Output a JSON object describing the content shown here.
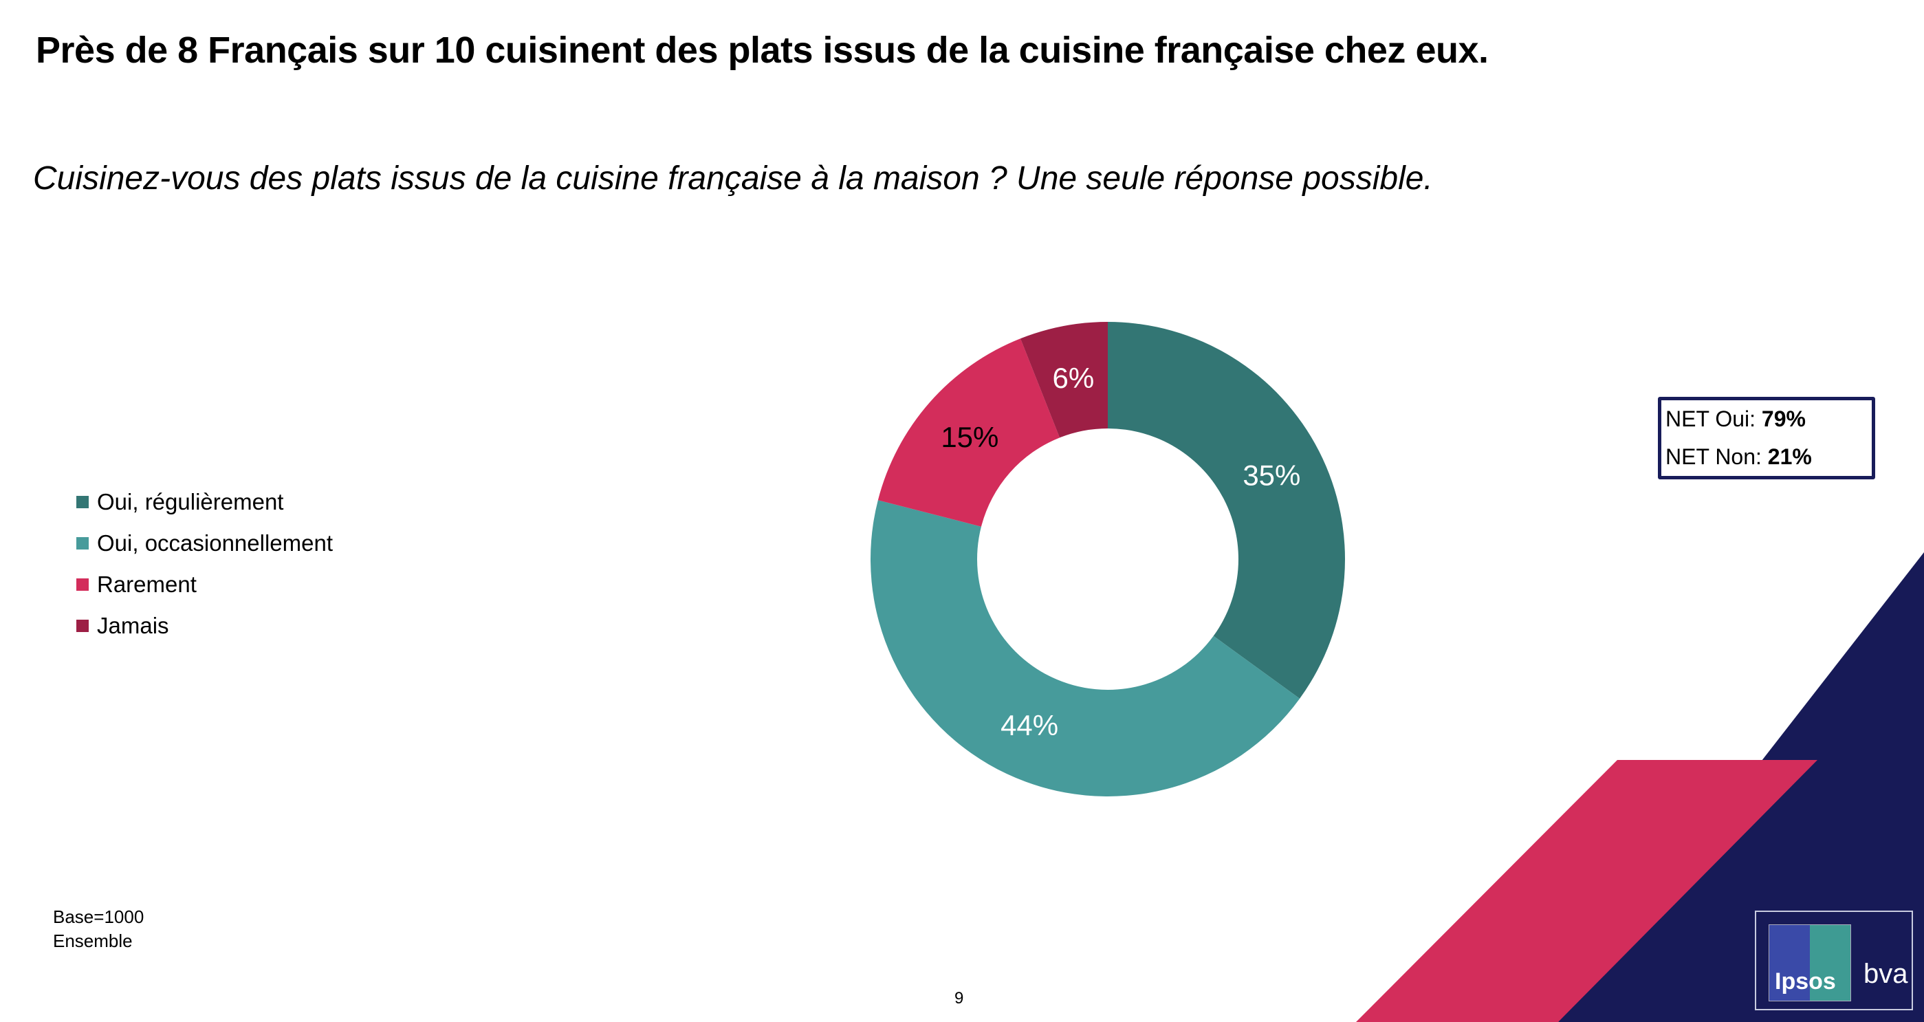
{
  "title": "Près de 8 Français sur 10 cuisinent des plats issus de la cuisine française chez eux.",
  "subtitle": "Cuisinez-vous des plats issus de la cuisine française à la maison ? Une seule réponse possible.",
  "chart_data": {
    "type": "pie",
    "donut": true,
    "categories": [
      "Oui, régulièrement",
      "Oui, occasionnellement",
      "Rarement",
      "Jamais"
    ],
    "values": [
      35,
      44,
      15,
      6
    ],
    "labels": [
      "35%",
      "44%",
      "15%",
      "6%"
    ],
    "colors": [
      "#337674",
      "#479b9b",
      "#d32d5b",
      "#9d1f45"
    ],
    "label_colors": [
      "#ffffff",
      "#ffffff",
      "#000000",
      "#ffffff"
    ],
    "legend_position": "left"
  },
  "net": {
    "oui_label": "NET Oui: ",
    "oui_value": "79%",
    "non_label": "NET Non: ",
    "non_value": "21%"
  },
  "base": {
    "line1": "Base=1000",
    "line2": "Ensemble"
  },
  "page_number": "9",
  "logo": {
    "ipsos": "Ipsos",
    "bva": "bva"
  },
  "colors": {
    "navy": "#171a57",
    "pink": "#d32d5b"
  }
}
